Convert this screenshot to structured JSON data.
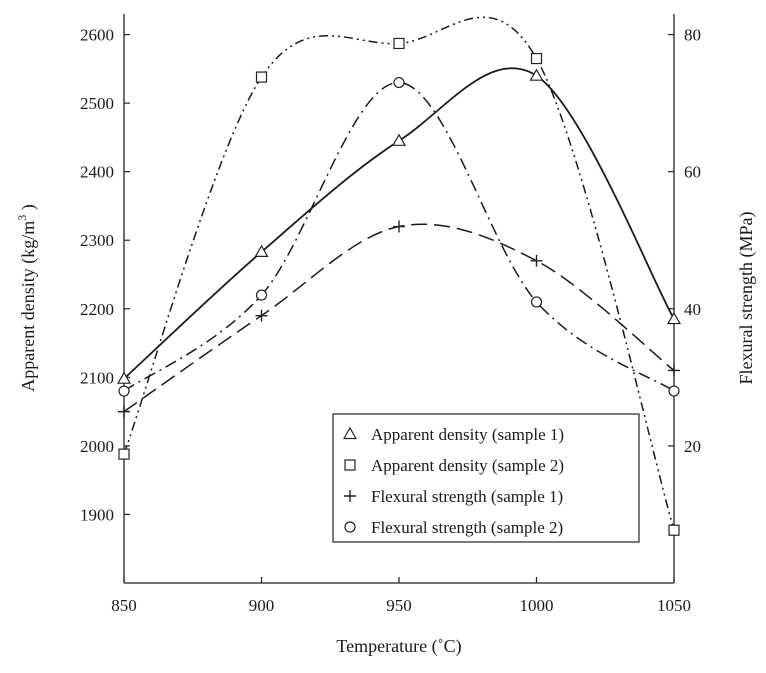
{
  "chart_data": {
    "type": "line",
    "title": "",
    "xlabel": "Temperature (˚C)",
    "ylabel_left": "Apparent density (kg/m³)",
    "ylabel_left_parts": {
      "main": "Apparent density (kg/m",
      "sup": "3",
      "close": " )"
    },
    "ylabel_right": "Flexural strength (MPa)",
    "x_ticks": [
      "850",
      "900",
      "950",
      "1000",
      "1050"
    ],
    "y_left_ticks": [
      "1900",
      "2000",
      "2100",
      "2200",
      "2300",
      "2400",
      "2500",
      "2600"
    ],
    "y_right_ticks": [
      "20",
      "40",
      "60",
      "80"
    ],
    "x_range": [
      850,
      1050
    ],
    "y_left_range": [
      1800,
      2630
    ],
    "y_right_range": [
      0,
      83
    ],
    "grid": false,
    "legend_position": "bottom-right",
    "series": [
      {
        "name": "Apparent density (sample 1)",
        "axis": "left",
        "marker": "triangle",
        "line_style": "solid",
        "x": [
          850,
          900,
          950,
          1000,
          1050
        ],
        "y": [
          2098,
          2283,
          2445,
          2540,
          2185
        ]
      },
      {
        "name": "Apparent density (sample 2)",
        "axis": "left",
        "marker": "square",
        "line_style": "dash-dot-dot",
        "x": [
          850,
          900,
          950,
          1000,
          1050
        ],
        "y": [
          1988,
          2538,
          2587,
          2565,
          1877
        ]
      },
      {
        "name": "Flexural strength (sample 1)",
        "axis": "right",
        "marker": "plus",
        "line_style": "long-dash",
        "x": [
          850,
          900,
          950,
          1000,
          1050
        ],
        "y": [
          25,
          39,
          52,
          47,
          31
        ]
      },
      {
        "name": "Flexural strength (sample 2)",
        "axis": "right",
        "marker": "circle",
        "line_style": "dash-dot",
        "x": [
          850,
          900,
          950,
          1000,
          1050
        ],
        "y": [
          28,
          42,
          73,
          41,
          28
        ]
      }
    ]
  }
}
